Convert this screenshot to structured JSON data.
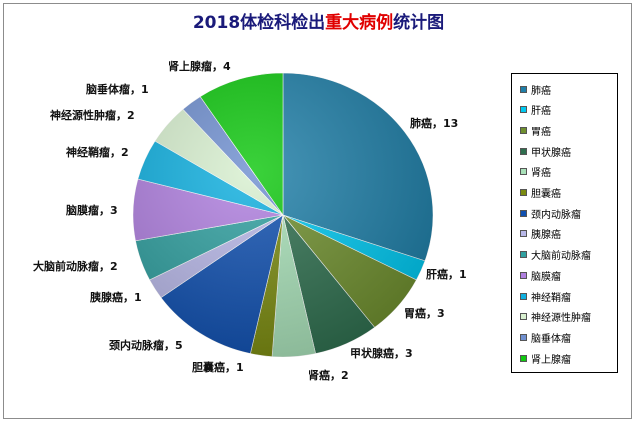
{
  "chart_data": {
    "type": "pie",
    "title_parts": [
      {
        "text": "2018体检科检出",
        "highlight": false
      },
      {
        "text": "重大病例",
        "highlight": true
      },
      {
        "text": "统计图",
        "highlight": false
      }
    ],
    "categories": [
      "肺癌",
      "肝癌",
      "胃癌",
      "甲状腺癌",
      "肾癌",
      "胆囊癌",
      "颈内动脉瘤",
      "胰腺癌",
      "大脑前动脉瘤",
      "脑膜瘤",
      "神经鞘瘤",
      "神经源性肿瘤",
      "脑垂体瘤",
      "肾上腺瘤"
    ],
    "values": [
      13,
      1,
      3,
      3,
      2,
      1,
      5,
      1,
      2,
      3,
      2,
      2,
      1,
      4
    ],
    "data_labels": [
      "肺癌，13",
      "肝癌，1",
      "胃癌，3",
      "甲状腺癌，3",
      "肾癌，2",
      "胆囊癌，1",
      "颈内动脉瘤，5",
      "胰腺癌，1",
      "大脑前动脉瘤，2",
      "脑膜瘤，3",
      "神经鞘瘤，2",
      "神经源性肿瘤，2",
      "脑垂体瘤，1",
      "肾上腺瘤，4"
    ],
    "legend_labels": [
      "肺癌",
      "肝癌",
      "胃癌",
      "甲状腺癌",
      "肾癌",
      "胆囊癌",
      "颈内动脉瘤",
      "胰腺癌",
      "大脑前动脉瘤",
      "脑膜瘤",
      "神经鞘瘤",
      "神经源性肿瘤",
      "脑垂体瘤",
      "肾上腺瘤"
    ],
    "colors": [
      "#1f7fa8",
      "#00c8f0",
      "#6f8f2f",
      "#2f6f4f",
      "#a8e0b8",
      "#7a8a10",
      "#1050b0",
      "#b8b8e8",
      "#30a0a0",
      "#b080e0",
      "#10b0e0",
      "#d8f0d0",
      "#7090d0",
      "#10c810"
    ],
    "legend_position": "right",
    "start_angle_deg": 0,
    "direction": "clockwise"
  }
}
